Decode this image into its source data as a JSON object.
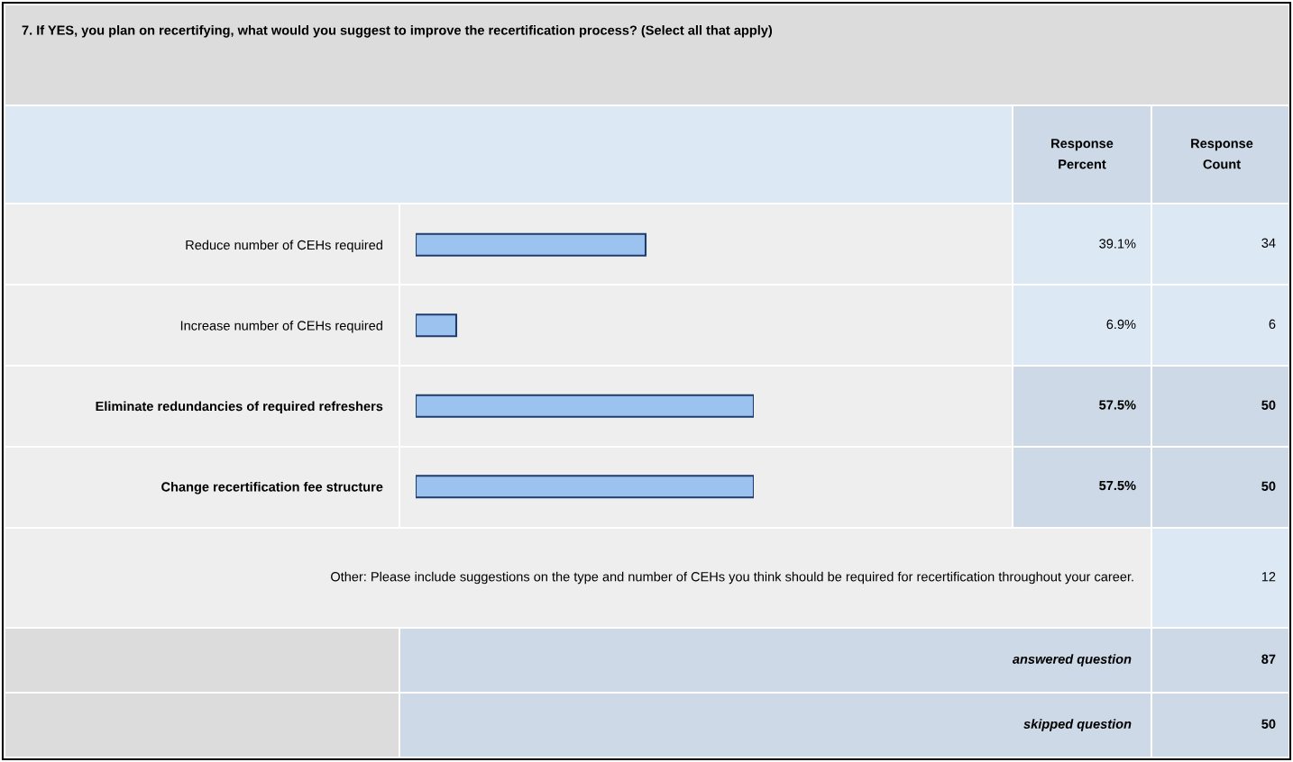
{
  "chart_data": {
    "type": "bar",
    "orientation": "horizontal",
    "title": "7. If YES, you plan on recertifying, what would you suggest to improve the recertification process? (Select all that apply)",
    "categories": [
      "Reduce number of CEHs required",
      "Increase number of CEHs required",
      "Eliminate redundancies of required refreshers",
      "Change recertification fee structure"
    ],
    "values": [
      39.1,
      6.9,
      57.5,
      57.5
    ],
    "value_labels": [
      "39.1%",
      "6.9%",
      "57.5%",
      "57.5%"
    ],
    "color": "#9cc3f0",
    "annotations": [
      "Response Percent",
      "Response Count",
      "34",
      "6",
      "50",
      "50",
      "Other: Please include suggestions on the type and number of CEHs you think should be required for recertification throughout your career.",
      "12",
      "answered question",
      "87",
      "skipped question",
      "50"
    ]
  }
}
